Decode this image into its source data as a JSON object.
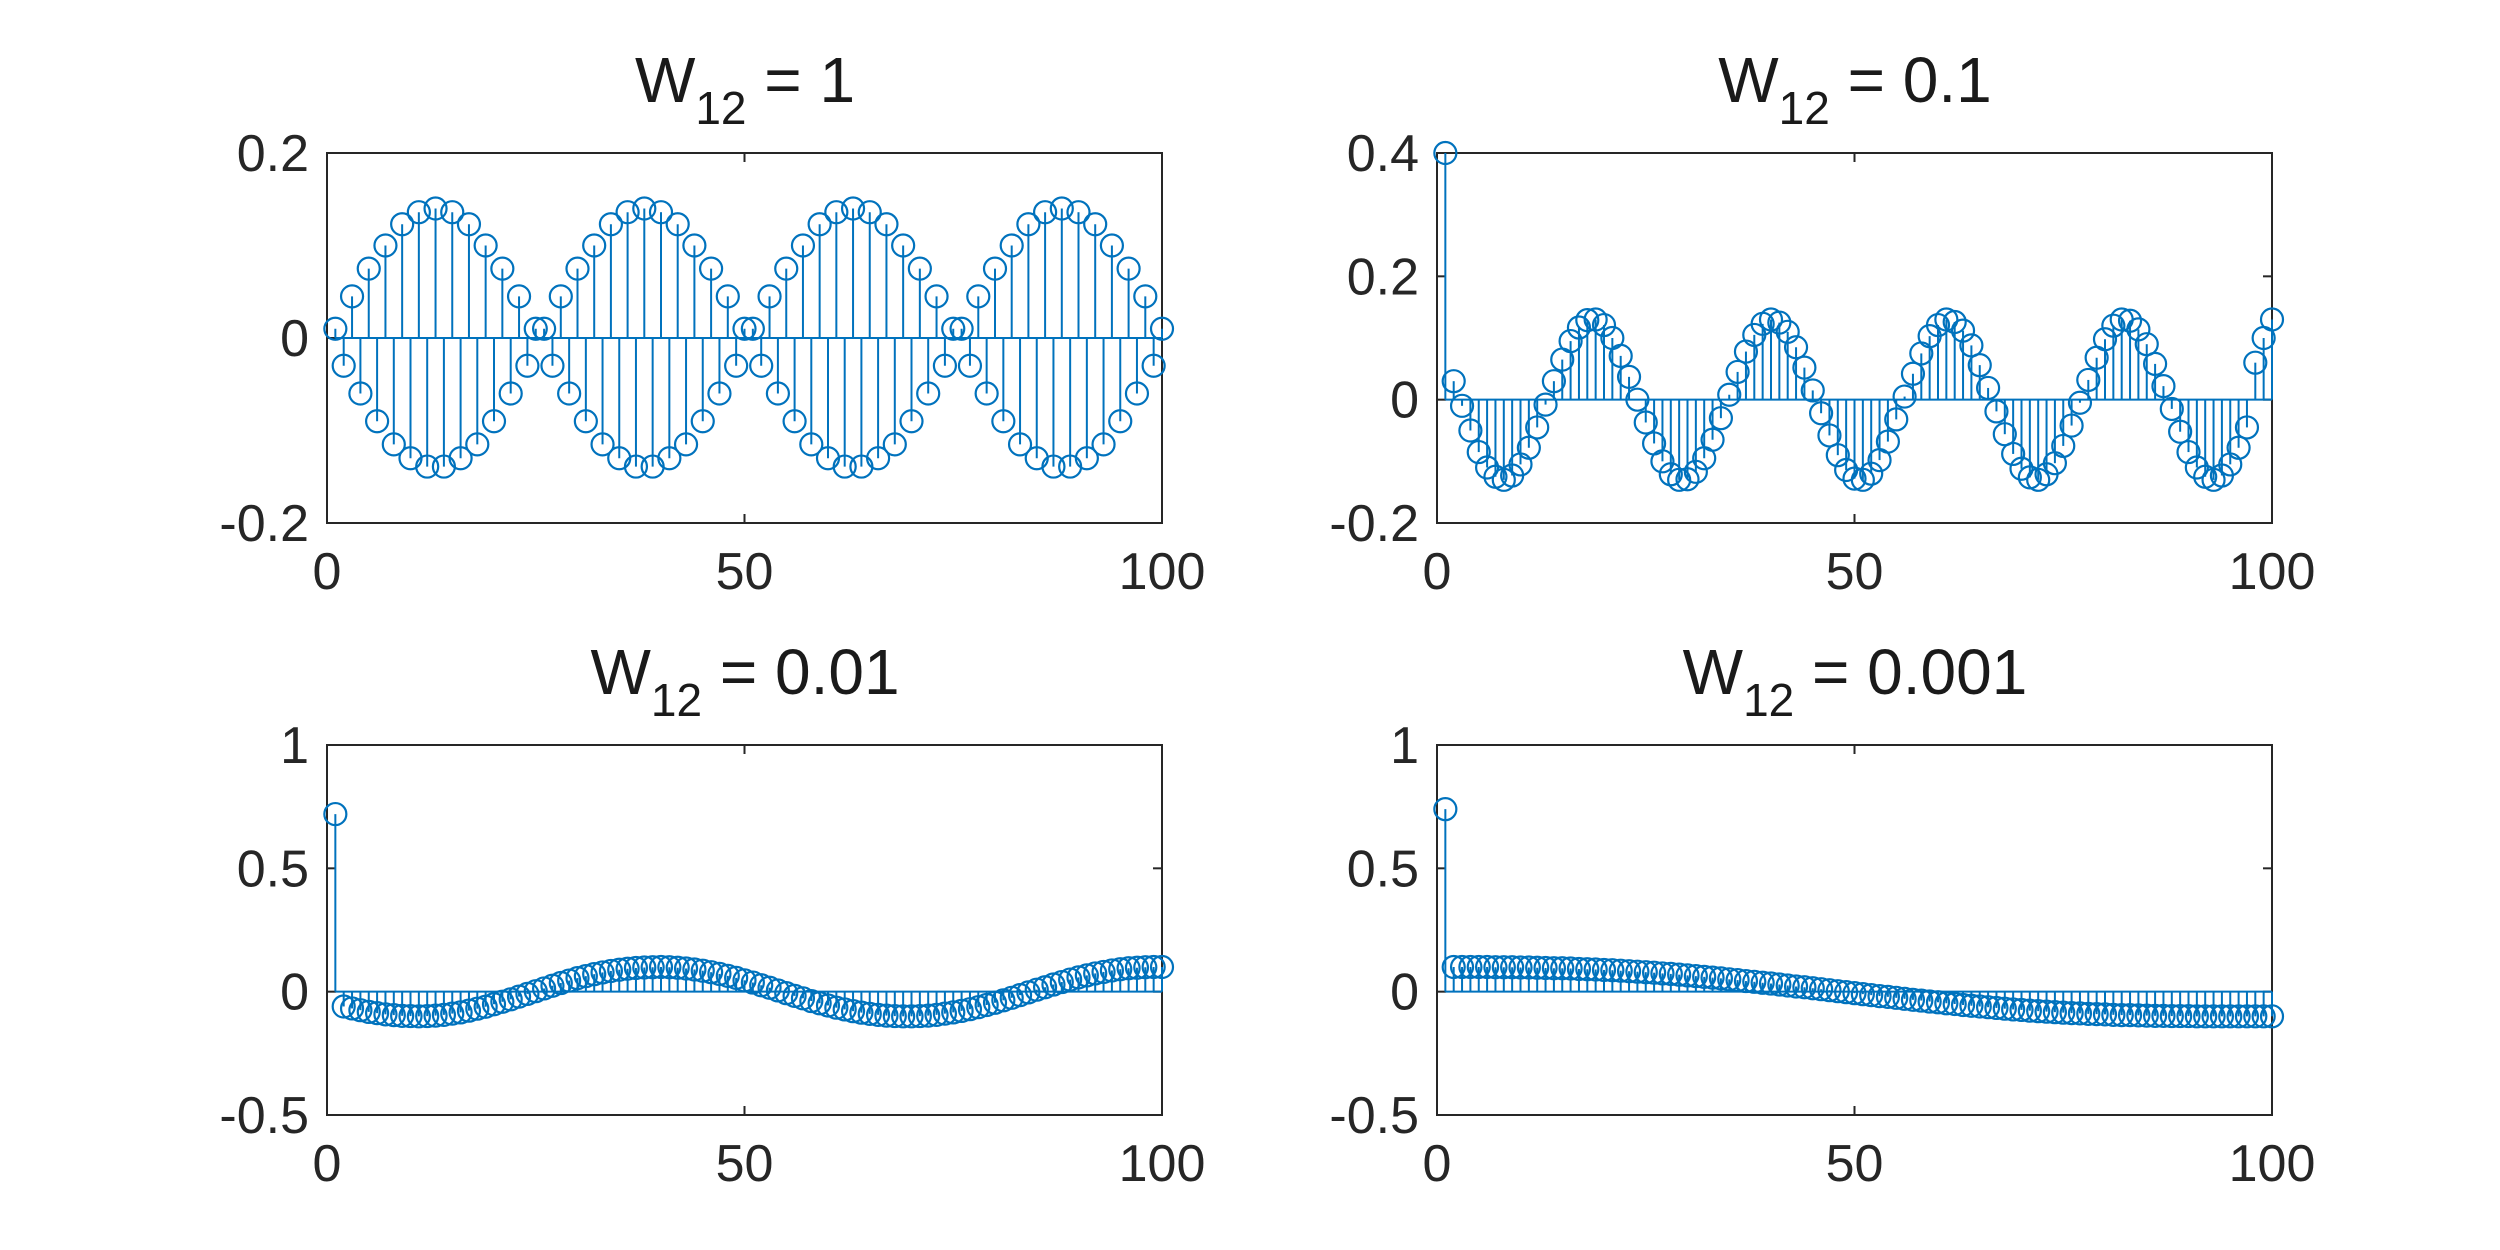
{
  "colors": {
    "series": "#0072BD",
    "axes": "#262626"
  },
  "chart_data": [
    {
      "type": "stem",
      "title_main": "W",
      "title_sub": "12",
      "title_rest": " = 1",
      "xlim": [
        0,
        100
      ],
      "ylim": [
        -0.2,
        0.2
      ],
      "xticks": [
        0,
        50,
        100
      ],
      "yticks": [
        -0.2,
        0,
        0.2
      ],
      "xtick_labels": [
        "0",
        "50",
        "100"
      ],
      "ytick_labels": [
        "-0.2",
        "0",
        "0.2"
      ],
      "x": [
        1,
        2,
        3,
        4,
        5,
        6,
        7,
        8,
        9,
        10,
        11,
        12,
        13,
        14,
        15,
        16,
        17,
        18,
        19,
        20,
        21,
        22,
        23,
        24,
        25,
        26,
        27,
        28,
        29,
        30,
        31,
        32,
        33,
        34,
        35,
        36,
        37,
        38,
        39,
        40,
        41,
        42,
        43,
        44,
        45,
        46,
        47,
        48,
        49,
        50,
        51,
        52,
        53,
        54,
        55,
        56,
        57,
        58,
        59,
        60,
        61,
        62,
        63,
        64,
        65,
        66,
        67,
        68,
        69,
        70,
        71,
        72,
        73,
        74,
        75,
        76,
        77,
        78,
        79,
        80,
        81,
        82,
        83,
        84,
        85,
        86,
        87,
        88,
        89,
        90,
        91,
        92,
        93,
        94,
        95,
        96,
        97,
        98,
        99,
        100
      ],
      "y": [
        0.01,
        -0.03,
        0.045,
        -0.06,
        0.075,
        -0.09,
        0.1,
        -0.115,
        0.123,
        -0.13,
        0.136,
        -0.139,
        0.14,
        -0.139,
        0.136,
        -0.13,
        0.123,
        -0.115,
        0.1,
        -0.09,
        0.075,
        -0.06,
        0.045,
        -0.03,
        0.01,
        0.01,
        -0.03,
        0.045,
        -0.06,
        0.075,
        -0.09,
        0.1,
        -0.115,
        0.123,
        -0.13,
        0.136,
        -0.139,
        0.14,
        -0.139,
        0.136,
        -0.13,
        0.123,
        -0.115,
        0.1,
        -0.09,
        0.075,
        -0.06,
        0.045,
        -0.03,
        0.01,
        0.01,
        -0.03,
        0.045,
        -0.06,
        0.075,
        -0.09,
        0.1,
        -0.115,
        0.123,
        -0.13,
        0.136,
        -0.139,
        0.14,
        -0.139,
        0.136,
        -0.13,
        0.123,
        -0.115,
        0.1,
        -0.09,
        0.075,
        -0.06,
        0.045,
        -0.03,
        0.01,
        0.01,
        -0.03,
        0.045,
        -0.06,
        0.075,
        -0.09,
        0.1,
        -0.115,
        0.123,
        -0.13,
        0.136,
        -0.139,
        0.14,
        -0.139,
        0.136,
        -0.13,
        0.123,
        -0.115,
        0.1,
        -0.09,
        0.075,
        -0.06,
        0.045,
        -0.03,
        0.01
      ]
    },
    {
      "type": "stem",
      "title_main": "W",
      "title_sub": "12",
      "title_rest": " = 0.1",
      "xlim": [
        0,
        100
      ],
      "ylim": [
        -0.2,
        0.4
      ],
      "xticks": [
        0,
        50,
        100
      ],
      "yticks": [
        -0.2,
        0,
        0.2,
        0.4
      ],
      "xtick_labels": [
        "0",
        "50",
        "100"
      ],
      "ytick_labels": [
        "-0.2",
        "0",
        "0.2",
        "0.4"
      ],
      "x": [
        1,
        2,
        3,
        4,
        5,
        6,
        7,
        8,
        9,
        10,
        11,
        12,
        13,
        14,
        15,
        16,
        17,
        18,
        19,
        20,
        21,
        22,
        23,
        24,
        25,
        26,
        27,
        28,
        29,
        30,
        31,
        32,
        33,
        34,
        35,
        36,
        37,
        38,
        39,
        40,
        41,
        42,
        43,
        44,
        45,
        46,
        47,
        48,
        49,
        50,
        51,
        52,
        53,
        54,
        55,
        56,
        57,
        58,
        59,
        60,
        61,
        62,
        63,
        64,
        65,
        66,
        67,
        68,
        69,
        70,
        71,
        72,
        73,
        74,
        75,
        76,
        77,
        78,
        79,
        80,
        81,
        82,
        83,
        84,
        85,
        86,
        87,
        88,
        89,
        90,
        91,
        92,
        93,
        94,
        95,
        96,
        97,
        98,
        99,
        100
      ],
      "y": [
        0.4,
        0.03,
        -0.01,
        -0.05,
        -0.085,
        -0.11,
        -0.125,
        -0.13,
        -0.123,
        -0.105,
        -0.078,
        -0.045,
        -0.008,
        0.03,
        0.065,
        0.095,
        0.117,
        0.129,
        0.13,
        0.121,
        0.1,
        0.071,
        0.037,
        0.0,
        -0.037,
        -0.071,
        -0.1,
        -0.121,
        -0.13,
        -0.129,
        -0.117,
        -0.095,
        -0.065,
        -0.03,
        0.008,
        0.045,
        0.078,
        0.105,
        0.123,
        0.13,
        0.125,
        0.11,
        0.085,
        0.052,
        0.015,
        -0.022,
        -0.058,
        -0.09,
        -0.114,
        -0.128,
        -0.13,
        -0.12,
        -0.098,
        -0.068,
        -0.032,
        0.005,
        0.042,
        0.075,
        0.103,
        0.121,
        0.13,
        0.126,
        0.112,
        0.088,
        0.056,
        0.019,
        -0.019,
        -0.056,
        -0.088,
        -0.112,
        -0.126,
        -0.13,
        -0.121,
        -0.103,
        -0.075,
        -0.042,
        -0.005,
        0.032,
        0.068,
        0.098,
        0.12,
        0.13,
        0.128,
        0.114,
        0.09,
        0.058,
        0.022,
        -0.015,
        -0.052,
        -0.085,
        -0.11,
        -0.125,
        -0.13,
        -0.123,
        -0.105,
        -0.078,
        -0.045,
        0.06,
        0.1,
        0.13
      ]
    },
    {
      "type": "stem",
      "title_main": "W",
      "title_sub": "12",
      "title_rest": " = 0.01",
      "xlim": [
        0,
        100
      ],
      "ylim": [
        -0.5,
        1
      ],
      "xticks": [
        0,
        50,
        100
      ],
      "yticks": [
        -0.5,
        0,
        0.5,
        1
      ],
      "xtick_labels": [
        "0",
        "50",
        "100"
      ],
      "ytick_labels": [
        "-0.5",
        "0",
        "0.5",
        "1"
      ],
      "x": [
        1,
        2,
        3,
        4,
        5,
        6,
        7,
        8,
        9,
        10,
        11,
        12,
        13,
        14,
        15,
        16,
        17,
        18,
        19,
        20,
        21,
        22,
        23,
        24,
        25,
        26,
        27,
        28,
        29,
        30,
        31,
        32,
        33,
        34,
        35,
        36,
        37,
        38,
        39,
        40,
        41,
        42,
        43,
        44,
        45,
        46,
        47,
        48,
        49,
        50,
        51,
        52,
        53,
        54,
        55,
        56,
        57,
        58,
        59,
        60,
        61,
        62,
        63,
        64,
        65,
        66,
        67,
        68,
        69,
        70,
        71,
        72,
        73,
        74,
        75,
        76,
        77,
        78,
        79,
        80,
        81,
        82,
        83,
        84,
        85,
        86,
        87,
        88,
        89,
        90,
        91,
        92,
        93,
        94,
        95,
        96,
        97,
        98,
        99,
        100
      ],
      "y": [
        0.72,
        -0.06,
        -0.068,
        -0.075,
        -0.082,
        -0.087,
        -0.092,
        -0.095,
        -0.098,
        -0.099,
        -0.1,
        -0.099,
        -0.097,
        -0.094,
        -0.089,
        -0.084,
        -0.077,
        -0.069,
        -0.061,
        -0.051,
        -0.041,
        -0.031,
        -0.02,
        -0.009,
        0.002,
        0.013,
        0.024,
        0.035,
        0.045,
        0.055,
        0.063,
        0.071,
        0.078,
        0.084,
        0.089,
        0.093,
        0.096,
        0.098,
        0.099,
        0.1,
        0.099,
        0.097,
        0.094,
        0.09,
        0.085,
        0.079,
        0.072,
        0.064,
        0.056,
        0.046,
        0.037,
        0.026,
        0.016,
        0.005,
        -0.006,
        -0.017,
        -0.027,
        -0.038,
        -0.047,
        -0.056,
        -0.065,
        -0.072,
        -0.079,
        -0.085,
        -0.09,
        -0.094,
        -0.097,
        -0.099,
        -0.1,
        -0.1,
        -0.099,
        -0.097,
        -0.094,
        -0.089,
        -0.084,
        -0.078,
        -0.071,
        -0.063,
        -0.054,
        -0.045,
        -0.035,
        -0.025,
        -0.014,
        -0.003,
        0.008,
        0.018,
        0.029,
        0.039,
        0.049,
        0.058,
        0.066,
        0.074,
        0.08,
        0.086,
        0.091,
        0.095,
        0.097,
        0.099,
        0.1,
        0.1
      ]
    },
    {
      "type": "stem",
      "title_main": "W",
      "title_sub": "12",
      "title_rest": " = 0.001",
      "xlim": [
        0,
        100
      ],
      "ylim": [
        -0.5,
        1
      ],
      "xticks": [
        0,
        50,
        100
      ],
      "yticks": [
        -0.5,
        0,
        0.5,
        1
      ],
      "xtick_labels": [
        "0",
        "50",
        "100"
      ],
      "ytick_labels": [
        "-0.5",
        "0",
        "0.5",
        "1"
      ],
      "x": [
        1,
        2,
        3,
        4,
        5,
        6,
        7,
        8,
        9,
        10,
        11,
        12,
        13,
        14,
        15,
        16,
        17,
        18,
        19,
        20,
        21,
        22,
        23,
        24,
        25,
        26,
        27,
        28,
        29,
        30,
        31,
        32,
        33,
        34,
        35,
        36,
        37,
        38,
        39,
        40,
        41,
        42,
        43,
        44,
        45,
        46,
        47,
        48,
        49,
        50,
        51,
        52,
        53,
        54,
        55,
        56,
        57,
        58,
        59,
        60,
        61,
        62,
        63,
        64,
        65,
        66,
        67,
        68,
        69,
        70,
        71,
        72,
        73,
        74,
        75,
        76,
        77,
        78,
        79,
        80,
        81,
        82,
        83,
        84,
        85,
        86,
        87,
        88,
        89,
        90,
        91,
        92,
        93,
        94,
        95,
        96,
        97,
        98,
        99,
        100
      ],
      "y": [
        0.74,
        0.1,
        0.1,
        0.1,
        0.1,
        0.1,
        0.099,
        0.099,
        0.099,
        0.098,
        0.098,
        0.097,
        0.096,
        0.095,
        0.095,
        0.094,
        0.092,
        0.091,
        0.09,
        0.088,
        0.087,
        0.085,
        0.083,
        0.081,
        0.079,
        0.077,
        0.074,
        0.072,
        0.069,
        0.066,
        0.063,
        0.06,
        0.057,
        0.054,
        0.05,
        0.047,
        0.043,
        0.04,
        0.036,
        0.033,
        0.029,
        0.025,
        0.021,
        0.018,
        0.014,
        0.01,
        0.006,
        0.002,
        -0.002,
        -0.006,
        -0.01,
        -0.014,
        -0.018,
        -0.021,
        -0.025,
        -0.029,
        -0.033,
        -0.036,
        -0.04,
        -0.043,
        -0.047,
        -0.05,
        -0.054,
        -0.057,
        -0.06,
        -0.063,
        -0.066,
        -0.069,
        -0.072,
        -0.074,
        -0.077,
        -0.079,
        -0.081,
        -0.083,
        -0.085,
        -0.087,
        -0.088,
        -0.09,
        -0.091,
        -0.092,
        -0.094,
        -0.095,
        -0.095,
        -0.096,
        -0.097,
        -0.098,
        -0.098,
        -0.099,
        -0.099,
        -0.099,
        -0.1,
        -0.1,
        -0.1,
        -0.1,
        -0.1,
        -0.1,
        -0.1,
        -0.1,
        -0.1,
        -0.1
      ]
    }
  ]
}
